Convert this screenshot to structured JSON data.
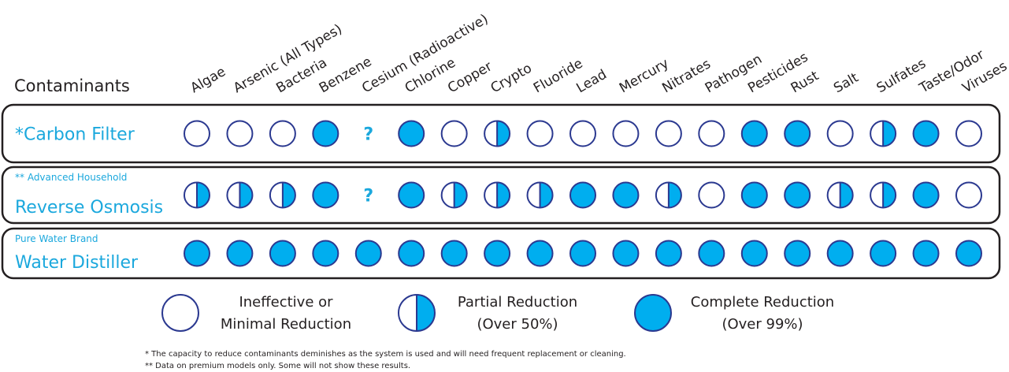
{
  "header": "Contaminants",
  "columns": [
    "Algae",
    "Arsenic (All Types)",
    "Bacteria",
    "Benzene",
    "Cesium (Radioactive)",
    "Chlorine",
    "Copper",
    "Crypto",
    "Fluoride",
    "Lead",
    "Mercury",
    "Nitrates",
    "Pathogen",
    "Pesticides",
    "Rust",
    "Salt",
    "Sulfates",
    "Taste/Odor",
    "Viruses"
  ],
  "rows": [
    {
      "label": "*Carbon Filter",
      "cells": [
        "empty",
        "empty",
        "empty",
        "full",
        "?",
        "full",
        "empty",
        "half",
        "empty",
        "empty",
        "empty",
        "empty",
        "empty",
        "full",
        "full",
        "empty",
        "half",
        "full",
        "empty"
      ]
    },
    {
      "prefix": "** Advanced Household",
      "label": "Reverse Osmosis",
      "cells": [
        "half",
        "half",
        "half",
        "full",
        "?",
        "full",
        "half",
        "half",
        "half",
        "full",
        "full",
        "half",
        "empty",
        "full",
        "full",
        "half",
        "half",
        "full",
        "empty"
      ]
    },
    {
      "prefix": "Pure Water Brand",
      "label": "Water Distiller",
      "cells": [
        "full",
        "full",
        "full",
        "full",
        "full",
        "full",
        "full",
        "full",
        "full",
        "full",
        "full",
        "full",
        "full",
        "full",
        "full",
        "full",
        "full",
        "full",
        "full"
      ]
    }
  ],
  "legend": [
    {
      "status": "empty",
      "lines": [
        "Ineffective or",
        "Minimal Reduction"
      ]
    },
    {
      "status": "half",
      "lines": [
        "Partial Reduction",
        "(Over 50%)"
      ]
    },
    {
      "status": "full",
      "lines": [
        "Complete Reduction",
        "(Over 99%)"
      ]
    }
  ],
  "footnotes": [
    "* The capacity to reduce contaminants deminishes as the system is used and will need frequent replacement or cleaning.",
    "** Data on premium models only. Some will not show these results."
  ]
}
